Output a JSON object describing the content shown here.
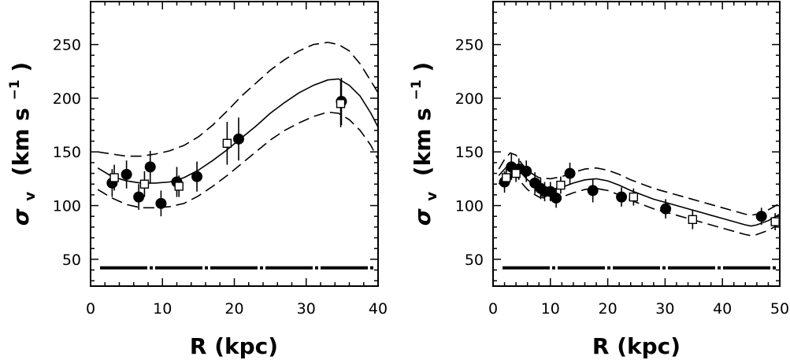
{
  "chart_data": [
    {
      "type": "scatter",
      "xlabel": "R (kpc)",
      "ylabel_symbol": "σ",
      "ylabel_sub": "v",
      "ylabel_units": "(km s",
      "ylabel_exp": "−1",
      "ylabel_close": ")",
      "xlim": [
        0,
        40
      ],
      "ylim": [
        25,
        290
      ],
      "xticks": [
        "0",
        "10",
        "20",
        "30",
        "40"
      ],
      "xtick_values": [
        0,
        10,
        20,
        30,
        40
      ],
      "yticks": [
        "50",
        "100",
        "150",
        "200",
        "250"
      ],
      "ytick_values": [
        50,
        100,
        150,
        200,
        250
      ],
      "grid": false,
      "series": [
        {
          "marker": "filled-circle",
          "points": [
            {
              "x": 3.0,
              "y": 121,
              "err": 13
            },
            {
              "x": 5.0,
              "y": 129,
              "err": 13
            },
            {
              "x": 6.7,
              "y": 108,
              "err": 12
            },
            {
              "x": 8.3,
              "y": 136,
              "err": 15
            },
            {
              "x": 9.8,
              "y": 102,
              "err": 12
            },
            {
              "x": 12.0,
              "y": 122,
              "err": 14
            },
            {
              "x": 14.8,
              "y": 127,
              "err": 14
            },
            {
              "x": 20.6,
              "y": 162,
              "err": 20
            },
            {
              "x": 34.9,
              "y": 197,
              "err": 22
            }
          ]
        },
        {
          "marker": "open-square",
          "points": [
            {
              "x": 3.3,
              "y": 126,
              "err": 12
            },
            {
              "x": 7.5,
              "y": 120,
              "err": 12
            },
            {
              "x": 12.3,
              "y": 118,
              "err": 10
            },
            {
              "x": 19.0,
              "y": 158,
              "err": 20
            },
            {
              "x": 34.8,
              "y": 195,
              "err": 22
            }
          ]
        }
      ],
      "model_curve": {
        "x": [
          1.0,
          3.0,
          5.0,
          7.0,
          9.0,
          11.0,
          13.0,
          15.0,
          17.0,
          19.0,
          21.0,
          23.0,
          25.0,
          27.0,
          29.0,
          31.0,
          33.0,
          34.5,
          36.0,
          37.5,
          39.0,
          40.0
        ],
        "y": [
          135,
          127,
          123,
          121,
          121,
          122,
          126,
          133,
          142,
          152,
          163,
          174,
          186,
          196,
          205,
          212,
          217,
          218,
          212,
          202,
          186,
          173
        ],
        "upper": [
          150,
          148,
          146,
          146,
          148,
          151,
          156,
          164,
          175,
          188,
          202,
          214,
          226,
          236,
          244,
          250,
          252,
          250,
          244,
          232,
          216,
          205
        ],
        "lower": [
          115,
          107,
          101,
          98,
          98,
          99,
          102,
          109,
          118,
          128,
          139,
          150,
          161,
          170,
          177,
          183,
          187,
          186,
          180,
          170,
          156,
          143
        ]
      },
      "floor_value": 42
    },
    {
      "type": "scatter",
      "xlabel": "R (kpc)",
      "ylabel_symbol": "σ",
      "ylabel_sub": "v",
      "ylabel_units": "(km s",
      "ylabel_exp": "−1",
      "ylabel_close": ")",
      "xlim": [
        0,
        50
      ],
      "ylim": [
        25,
        290
      ],
      "xticks": [
        "0",
        "10",
        "20",
        "30",
        "40",
        "50"
      ],
      "xtick_values": [
        0,
        10,
        20,
        30,
        40,
        50
      ],
      "yticks": [
        "50",
        "100",
        "150",
        "200",
        "250"
      ],
      "ytick_values": [
        50,
        100,
        150,
        200,
        250
      ],
      "grid": false,
      "series": [
        {
          "marker": "filled-circle",
          "points": [
            {
              "x": 2.0,
              "y": 122,
              "err": 10
            },
            {
              "x": 3.2,
              "y": 136,
              "err": 12
            },
            {
              "x": 4.5,
              "y": 134,
              "err": 10
            },
            {
              "x": 5.8,
              "y": 132,
              "err": 10
            },
            {
              "x": 7.3,
              "y": 121,
              "err": 10
            },
            {
              "x": 8.3,
              "y": 116,
              "err": 10
            },
            {
              "x": 9.0,
              "y": 113,
              "err": 9
            },
            {
              "x": 10.0,
              "y": 113,
              "err": 9
            },
            {
              "x": 11.0,
              "y": 107,
              "err": 9
            },
            {
              "x": 13.4,
              "y": 130,
              "err": 10
            },
            {
              "x": 17.4,
              "y": 114,
              "err": 11
            },
            {
              "x": 22.4,
              "y": 108,
              "err": 9
            },
            {
              "x": 30.1,
              "y": 97,
              "err": 9
            },
            {
              "x": 46.8,
              "y": 90,
              "err": 8
            }
          ]
        },
        {
          "marker": "open-square",
          "points": [
            {
              "x": 2.3,
              "y": 126,
              "err": 8
            },
            {
              "x": 4.0,
              "y": 130,
              "err": 8
            },
            {
              "x": 11.8,
              "y": 119,
              "err": 8
            },
            {
              "x": 24.5,
              "y": 108,
              "err": 8
            },
            {
              "x": 34.8,
              "y": 87,
              "err": 9
            },
            {
              "x": 49.2,
              "y": 85,
              "err": 8
            }
          ]
        }
      ],
      "model_curve": {
        "x": [
          1.0,
          2.0,
          3.0,
          4.0,
          5.0,
          6.0,
          7.0,
          8.0,
          10.0,
          12.0,
          14.0,
          16.0,
          18.0,
          20.0,
          22.0,
          24.0,
          26.0,
          28.0,
          30.0,
          32.0,
          34.0,
          36.0,
          38.0,
          40.0,
          42.0,
          44.0,
          45.0,
          46.0,
          48.0,
          50.0
        ],
        "y": [
          128,
          134,
          140,
          138,
          130,
          124,
          120,
          117,
          115,
          117,
          121,
          124,
          125,
          123,
          119,
          114,
          110,
          106,
          103,
          100,
          97,
          94,
          91,
          88,
          85,
          82,
          81,
          82,
          86,
          92
        ],
        "upper": [
          134,
          143,
          149,
          147,
          139,
          133,
          129,
          126,
          125,
          127,
          131,
          134,
          135,
          133,
          129,
          124,
          120,
          116,
          113,
          110,
          107,
          104,
          101,
          98,
          95,
          92,
          91,
          92,
          96,
          102
        ],
        "lower": [
          120,
          126,
          131,
          129,
          121,
          115,
          111,
          108,
          106,
          108,
          112,
          115,
          116,
          114,
          110,
          105,
          101,
          97,
          94,
          91,
          88,
          85,
          82,
          79,
          76,
          73,
          72,
          73,
          77,
          83
        ]
      },
      "floor_value": 42
    }
  ]
}
